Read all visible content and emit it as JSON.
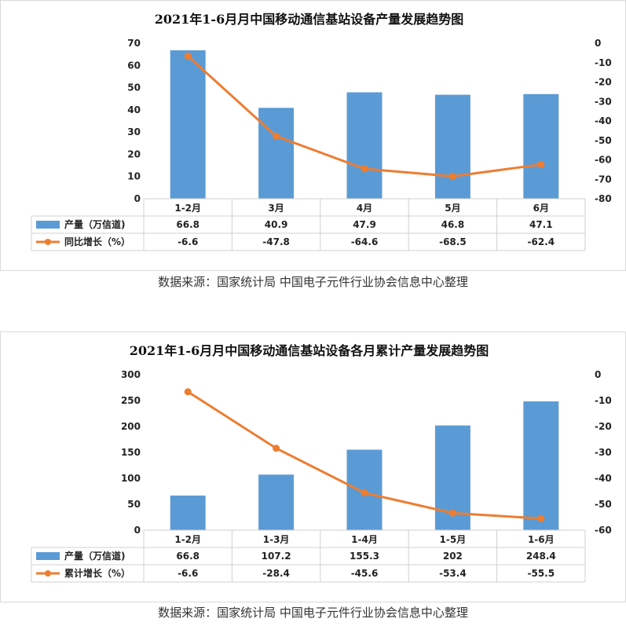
{
  "chart_data": [
    {
      "type": "bar+line",
      "title": "2021年1-6月月中国移动通信基站设备产量发展趋势图",
      "categories": [
        "1-2月",
        "3月",
        "4月",
        "5月",
        "6月"
      ],
      "series": [
        {
          "name": "产量（万信道)",
          "kind": "bar",
          "axis": "left",
          "values": [
            66.8,
            40.9,
            47.9,
            46.8,
            47.1
          ],
          "labels": [
            "66.8",
            "40.9",
            "47.9",
            "46.8",
            "47.1"
          ],
          "color": "#5b9bd5"
        },
        {
          "name": "同比增长（%）",
          "kind": "line",
          "axis": "right",
          "values": [
            -6.6,
            -47.8,
            -64.6,
            -68.5,
            -62.4
          ],
          "labels": [
            "-6.6",
            "-47.8",
            "-64.6",
            "-68.5",
            "-62.4"
          ],
          "color": "#ed7d31"
        }
      ],
      "ylim_left": [
        0,
        70
      ],
      "yticks_left": [
        "0",
        "10",
        "20",
        "30",
        "40",
        "50",
        "60",
        "70"
      ],
      "ylim_right": [
        -80,
        0
      ],
      "yticks_right": [
        "0",
        "-10",
        "-20",
        "-30",
        "-40",
        "-50",
        "-60",
        "-70",
        "-80"
      ],
      "data_table": true
    },
    {
      "type": "bar+line",
      "title": "2021年1-6月月中国移动通信基站设备各月累计产量发展趋势图",
      "categories": [
        "1-2月",
        "1-3月",
        "1-4月",
        "1-5月",
        "1-6月"
      ],
      "series": [
        {
          "name": "产量（万信道)",
          "kind": "bar",
          "axis": "left",
          "values": [
            66.8,
            107.2,
            155.3,
            202,
            248.4
          ],
          "labels": [
            "66.8",
            "107.2",
            "155.3",
            "202",
            "248.4"
          ],
          "color": "#5b9bd5"
        },
        {
          "name": "累计增长（%）",
          "kind": "line",
          "axis": "right",
          "values": [
            -6.6,
            -28.4,
            -45.6,
            -53.4,
            -55.5
          ],
          "labels": [
            "-6.6",
            "-28.4",
            "-45.6",
            "-53.4",
            "-55.5"
          ],
          "color": "#ed7d31"
        }
      ],
      "ylim_left": [
        0,
        300
      ],
      "yticks_left": [
        "0",
        "50",
        "100",
        "150",
        "200",
        "250",
        "300"
      ],
      "ylim_right": [
        -60,
        0
      ],
      "yticks_right": [
        "0",
        "-10",
        "-20",
        "-30",
        "-40",
        "-50",
        "-60"
      ],
      "data_table": true
    }
  ],
  "sources": [
    "数据来源：国家统计局   中国电子元件行业协会信息中心整理",
    "数据来源：国家统计局   中国电子元件行业协会信息中心整理"
  ]
}
